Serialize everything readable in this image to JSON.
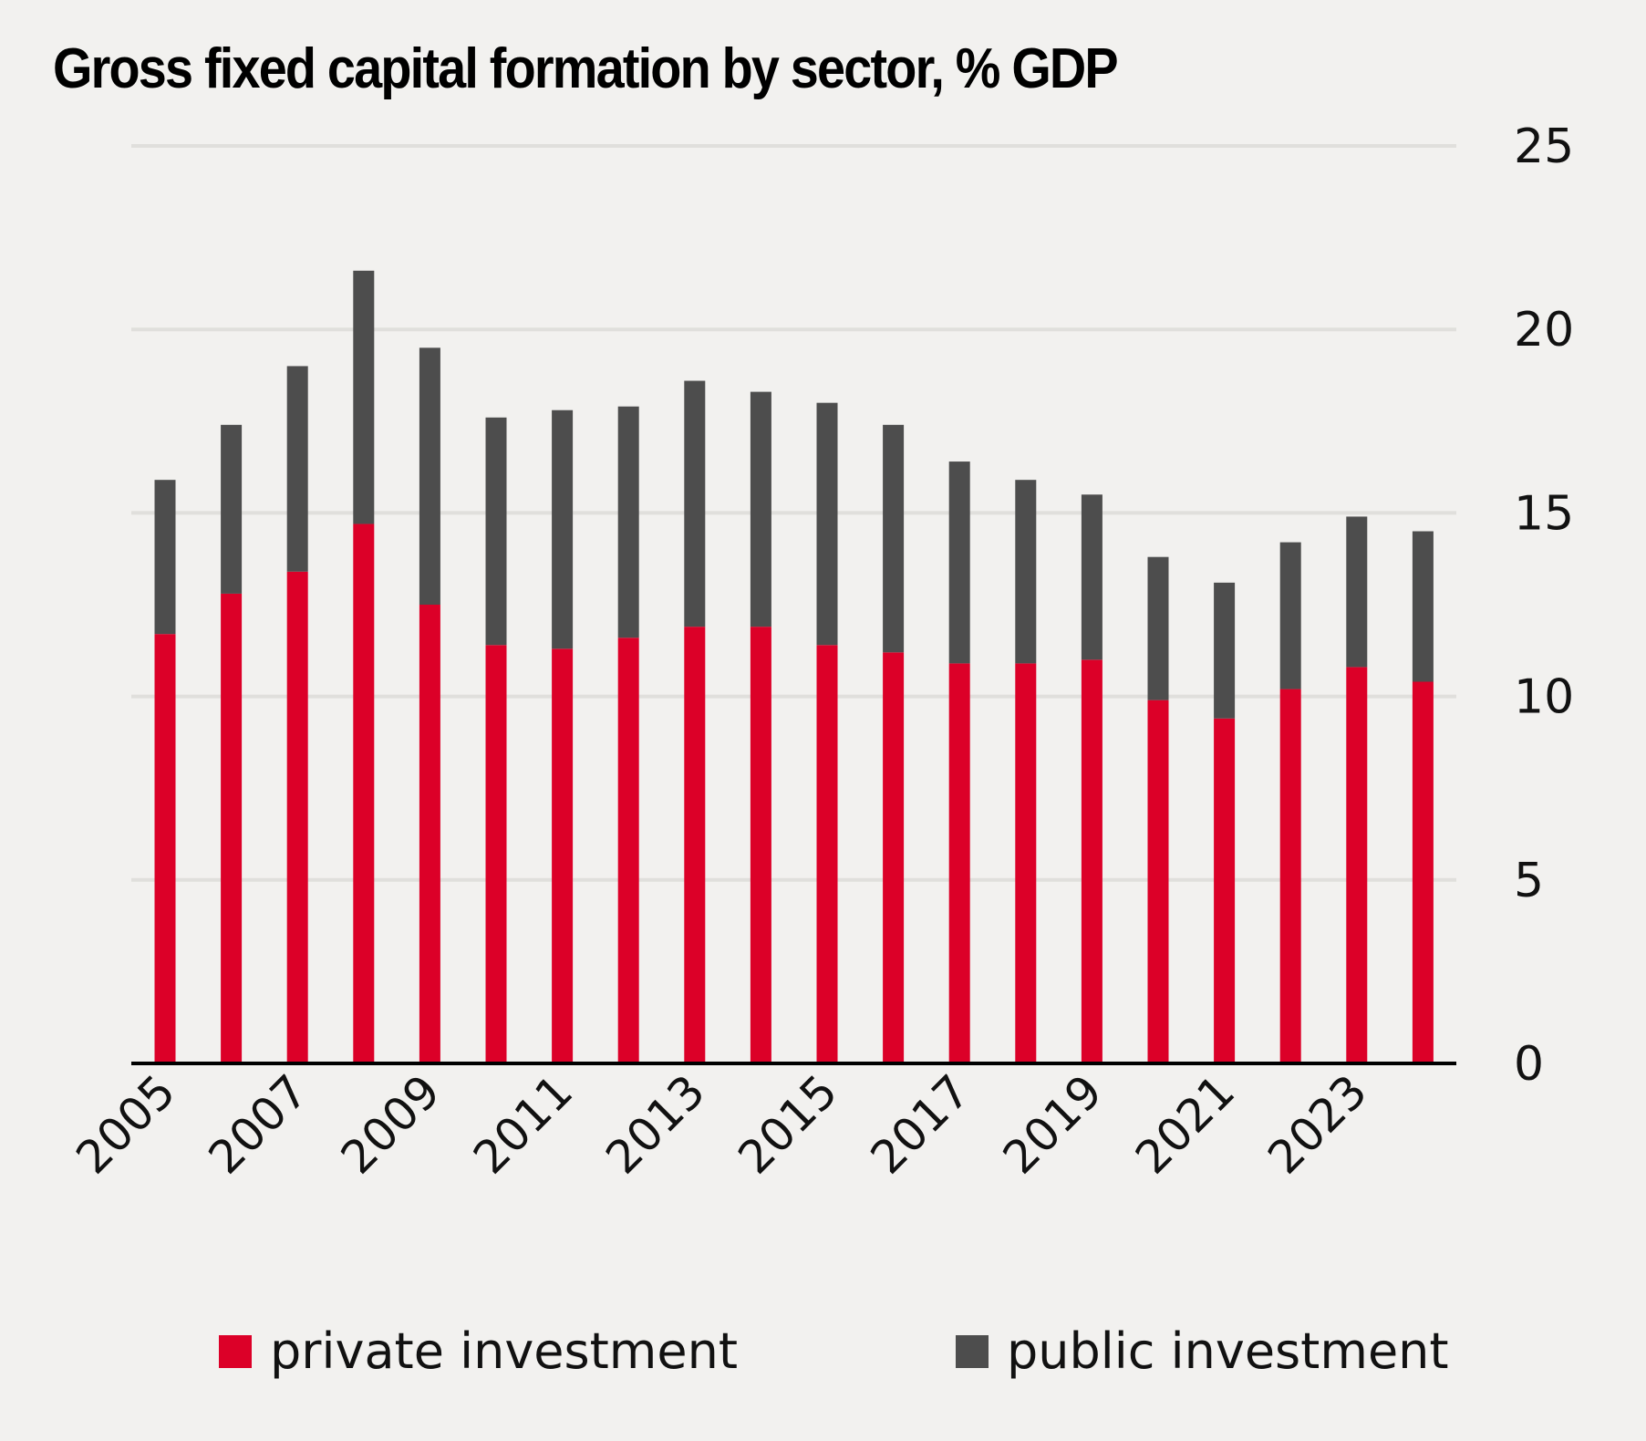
{
  "chart_data": {
    "type": "bar",
    "stacked": true,
    "title": "Gross fixed capital formation by sector, % GDP",
    "xlabel": "",
    "ylabel": "",
    "ylim": [
      0,
      25
    ],
    "yticks": [
      0,
      5,
      10,
      15,
      20,
      25
    ],
    "y_axis_position": "right",
    "grid": true,
    "legend_position": "bottom",
    "categories": [
      "2005",
      "2006",
      "2007",
      "2008",
      "2009",
      "2010",
      "2011",
      "2012",
      "2013",
      "2014",
      "2015",
      "2016",
      "2017",
      "2018",
      "2019",
      "2020",
      "2021",
      "2022",
      "2023",
      "2024"
    ],
    "x_tick_labels": [
      "2005",
      "2007",
      "2009",
      "2011",
      "2013",
      "2015",
      "2017",
      "2019",
      "2021",
      "2023"
    ],
    "series": [
      {
        "name": "private investment",
        "color": "#dc0028",
        "values": [
          11.7,
          12.8,
          13.4,
          14.7,
          12.5,
          11.4,
          11.3,
          11.6,
          11.9,
          11.9,
          11.4,
          11.2,
          10.9,
          10.9,
          11.0,
          9.9,
          9.4,
          10.2,
          10.8,
          10.4
        ]
      },
      {
        "name": "public investment",
        "color": "#4d4d4d",
        "values": [
          4.2,
          4.6,
          5.6,
          6.9,
          7.0,
          6.2,
          6.5,
          6.3,
          6.7,
          6.4,
          6.6,
          6.2,
          5.5,
          5.0,
          4.5,
          3.9,
          3.7,
          4.0,
          4.1,
          4.1
        ]
      }
    ]
  }
}
